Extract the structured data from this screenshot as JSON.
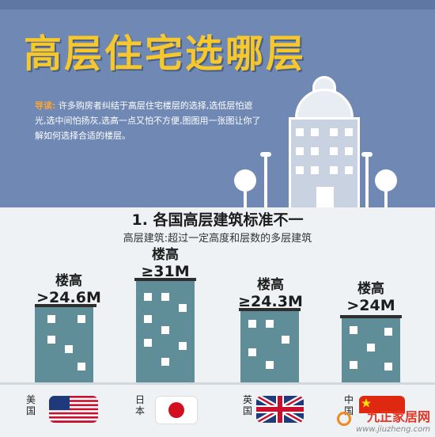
{
  "header": {
    "title": "高层住宅选哪层",
    "intro_lead": "导读:",
    "intro_text": " 许多购房者纠结于高层住宅楼层的选择,选低层怕遮光,选中间怕扬灰,选高一点又怕不方便,图图用一张图让你了解如何选择合适的楼层。"
  },
  "section": {
    "title": "1. 各国高层建筑标准不一",
    "subtitle": "高层建筑:超过一定高度和层数的多层建筑"
  },
  "countries": [
    {
      "name": "美国",
      "label_line1": "楼高",
      "label_line2": ">24.6M",
      "flag": "us-flag"
    },
    {
      "name": "日本",
      "label_line1": "楼高",
      "label_line2": "≥31M",
      "flag": "japan-flag"
    },
    {
      "name": "英国",
      "label_line1": "楼高",
      "label_line2": "≥24.3M",
      "flag": "uk-flag"
    },
    {
      "name": "中国",
      "label_line1": "楼高",
      "label_line2": ">24M",
      "flag": "china-flag"
    }
  ],
  "colors": {
    "header_bg": "#7089b4",
    "title": "#f7c82c",
    "intro_lead": "#f7a437",
    "building": "#5f8e98",
    "watermark": "#e53523"
  },
  "watermark": {
    "name": "九正家居网",
    "url": "www.jiuzheng.com"
  }
}
